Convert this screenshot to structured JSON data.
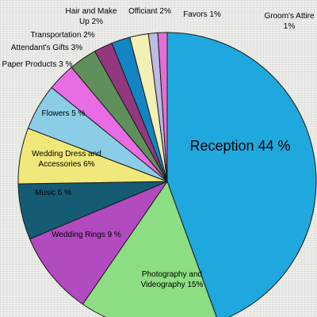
{
  "chart_data": {
    "type": "pie",
    "categories": [
      "Reception",
      "Photography and Videography",
      "Wedding Rings",
      "Music",
      "Wedding Dress and Accessories",
      "Flowers",
      "Paper Products",
      "Attendant's Gifts",
      "Transportation",
      "Hair and Make Up",
      "Officiant",
      "Favors",
      "Groom's Attire"
    ],
    "values": [
      44,
      15,
      9,
      6,
      6,
      5,
      3,
      3,
      2,
      2,
      2,
      1,
      1
    ],
    "colors": [
      "#1fa8dd",
      "#8ddd82",
      "#b24bbf",
      "#155b74",
      "#f0e87a",
      "#8bcde6",
      "#e86ce3",
      "#5f8f5a",
      "#93377f",
      "#1285c2",
      "#f3f0b6",
      "#bdbbe3",
      "#e26fd8"
    ],
    "labels": [
      [
        "Reception 44 %"
      ],
      [
        "Photography and",
        "Videography 15%"
      ],
      [
        "Wedding Rings 9 %"
      ],
      [
        "Music 6 %"
      ],
      [
        "Wedding Dress and",
        "Accessories 6%"
      ],
      [
        "Flowers 5 %"
      ],
      [
        "Paper Products 3 %"
      ],
      [
        "Attendant's Gifts 3%"
      ],
      [
        "Transportation 2%"
      ],
      [
        "Hair and Make",
        "Up 2%"
      ],
      [
        "Officiant 2%"
      ],
      [
        "Favors 1%"
      ],
      [
        "Groom's Attire",
        "1%"
      ]
    ],
    "start_angle_deg": 0,
    "direction": "clockwise"
  }
}
